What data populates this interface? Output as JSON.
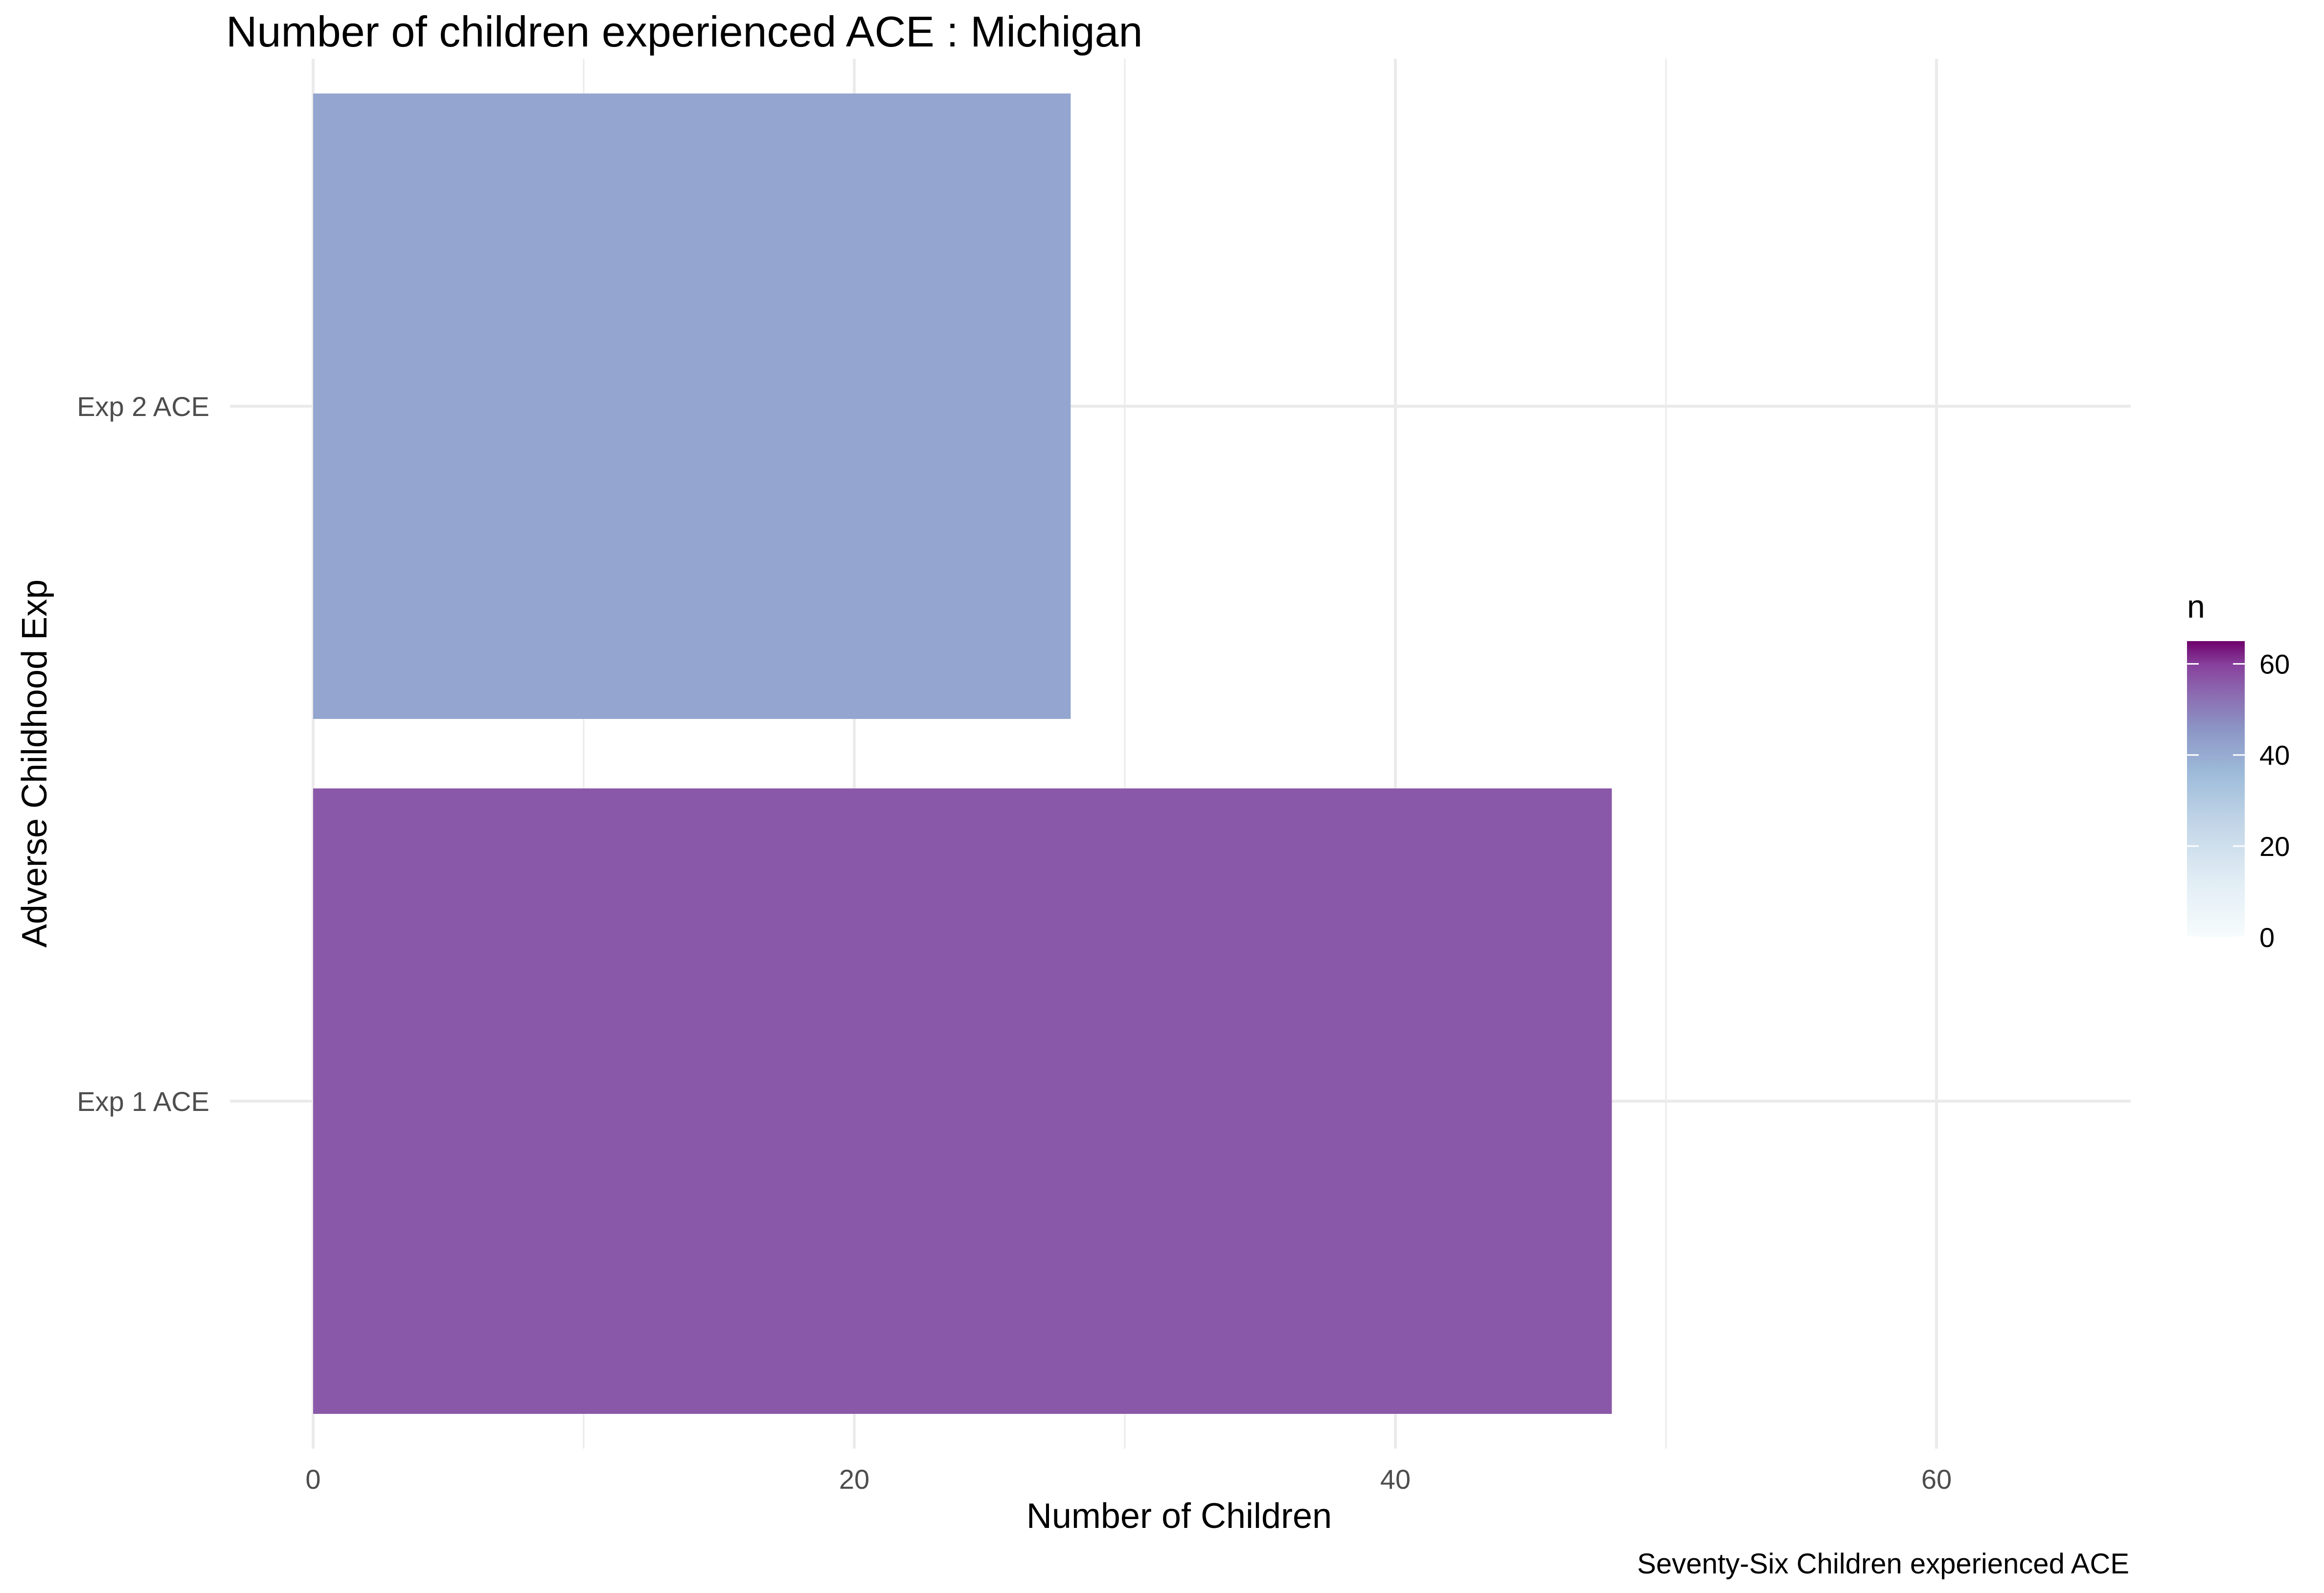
{
  "chart_data": {
    "type": "bar",
    "orientation": "horizontal",
    "title": "Number of children experienced ACE : Michigan",
    "xlabel": "Number of Children",
    "ylabel": "Adverse Childhood Exp",
    "caption": "Seventy-Six Children experienced ACE",
    "categories": [
      "Exp 1 ACE",
      "Exp 2 ACE"
    ],
    "values": [
      48,
      28
    ],
    "bar_colors": [
      "#8A58A8",
      "#94A6CF"
    ],
    "xlim": [
      0,
      67.2
    ],
    "xticks": [
      0,
      20,
      40,
      60
    ],
    "grid": true,
    "legend": {
      "title": "n",
      "type": "colorbar",
      "position": "right",
      "range": [
        0,
        65
      ],
      "ticks": [
        0,
        20,
        40,
        60
      ],
      "colors": [
        "#F7FCFD",
        "#BFD3E6",
        "#8C96C6",
        "#8C6BB1",
        "#88419D",
        "#6E016B"
      ]
    }
  }
}
